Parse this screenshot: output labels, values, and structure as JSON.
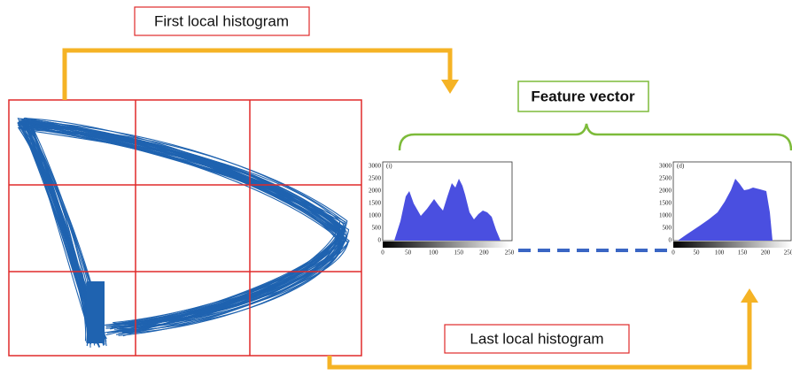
{
  "labels": {
    "first": "First local histogram",
    "last": "Last local histogram",
    "feature": "Feature vector"
  },
  "histograms": [
    {
      "panel": "(i)",
      "yticks": [
        "3000",
        "2500",
        "2000",
        "1500",
        "1000",
        "500",
        "0"
      ],
      "xticks": [
        "0",
        "50",
        "100",
        "150",
        "200",
        "250"
      ]
    },
    {
      "panel": "(d)",
      "yticks": [
        "3000",
        "2500",
        "2000",
        "1500",
        "1000",
        "500",
        "0"
      ],
      "xticks": [
        "0",
        "50",
        "100",
        "150",
        "200",
        "250"
      ]
    }
  ]
}
